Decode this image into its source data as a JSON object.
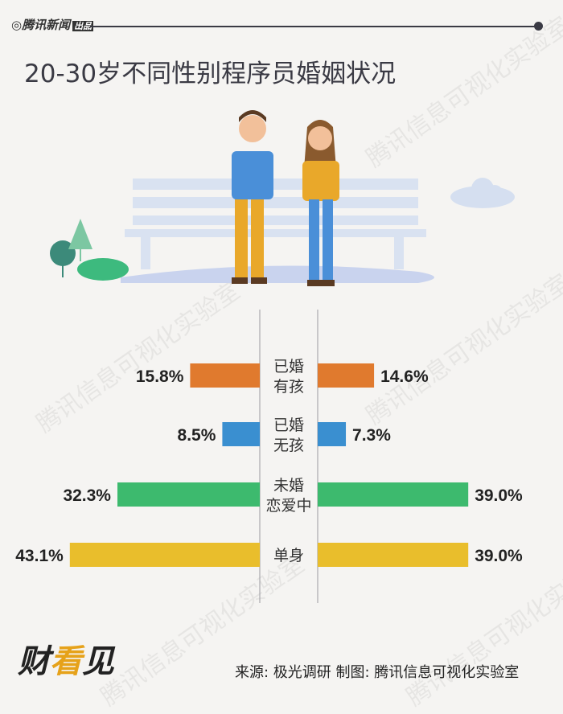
{
  "brand": {
    "name": "腾讯新闻",
    "suffix": "出品"
  },
  "title": "20-30岁不同性别程序员婚姻状况",
  "watermark": "腾讯信息可视化实验室",
  "footer": {
    "source": "来源: 极光调研  制图: 腾讯信息可视化实验室",
    "logo": "财看见"
  },
  "chart_data": {
    "type": "bar",
    "orientation": "horizontal-butterfly",
    "title": "20-30岁不同性别程序员婚姻状况",
    "categories": [
      [
        "已婚",
        "有孩"
      ],
      [
        "已婚",
        "无孩"
      ],
      [
        "未婚",
        "恋爱中"
      ],
      [
        "单身"
      ]
    ],
    "series": [
      {
        "side": "left",
        "figure": "male",
        "values": [
          15.8,
          8.5,
          32.3,
          43.1
        ],
        "labels": [
          "15.8%",
          "8.5%",
          "32.3%",
          "43.1%"
        ]
      },
      {
        "side": "right",
        "figure": "female",
        "values": [
          14.6,
          7.3,
          39.0,
          39.0
        ],
        "labels": [
          "14.6%",
          "7.3%",
          "39.0%",
          "39.0%"
        ]
      }
    ],
    "colors": [
      "#e07a2e",
      "#3a8fd0",
      "#3dba6e",
      "#e9be2c"
    ],
    "grid": false
  }
}
